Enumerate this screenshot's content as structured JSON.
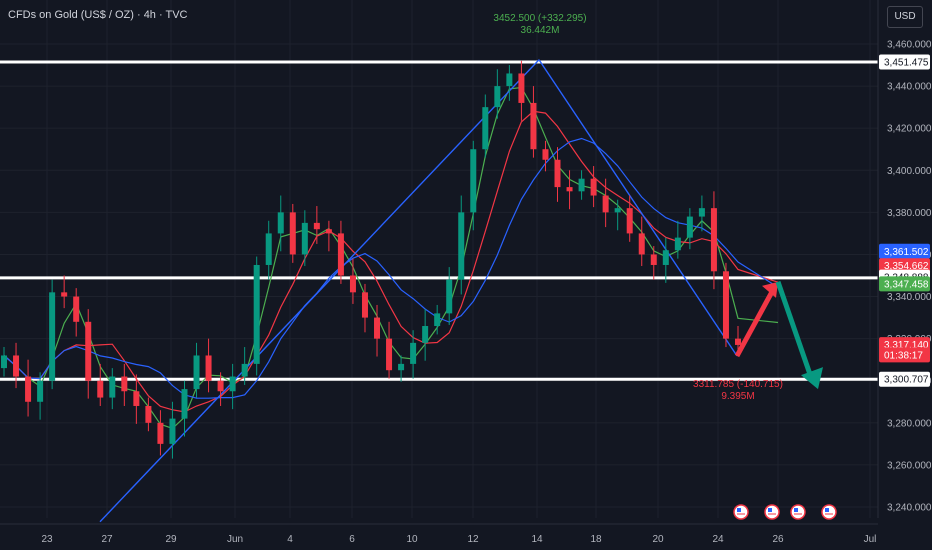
{
  "header": {
    "title": "CFDs on Gold (US$ / OZ) · 4h · TVC",
    "currency": "USD"
  },
  "price_axis": {
    "ticks": [
      "3,460.000",
      "3,440.000",
      "3,420.000",
      "3,400.000",
      "3,380.000",
      "3,360.000",
      "3,340.000",
      "3,320.000",
      "3,300.000",
      "3,280.000",
      "3,260.000",
      "3,240.000"
    ],
    "labels": [
      {
        "text": "3,451.475",
        "value": 3451.475,
        "bg": "#ffffff",
        "fg": "#131722"
      },
      {
        "text": "3,361.502",
        "value": 3361.502,
        "bg": "#2962ff",
        "fg": "#ffffff"
      },
      {
        "text": "3,354.662",
        "value": 3354.662,
        "bg": "#f23645",
        "fg": "#ffffff"
      },
      {
        "text": "3,348.888",
        "value": 3349.2,
        "bg": "#ffffff",
        "fg": "#131722"
      },
      {
        "text": "3,347.458",
        "value": 3346.0,
        "bg": "#4caf50",
        "fg": "#ffffff"
      },
      {
        "text": "3,317.140",
        "value": 3317.14,
        "bg": "#f23645",
        "fg": "#ffffff"
      },
      {
        "text": "01:38:17",
        "value": 3312.3,
        "bg": "#f23645",
        "fg": "#ffffff"
      },
      {
        "text": "3,300.707",
        "value": 3300.707,
        "bg": "#ffffff",
        "fg": "#131722"
      }
    ]
  },
  "time_axis": {
    "ticks": [
      "23",
      "27",
      "29",
      "Jun",
      "4",
      "6",
      "10",
      "12",
      "14",
      "18",
      "20",
      "24",
      "26",
      "Jul"
    ]
  },
  "annotations": {
    "high_line1": "3452.500 (+332.295)",
    "high_line2": "36.442M",
    "low_line1": "3311.785 (-140.715)",
    "low_line2": "9.395M"
  },
  "colors": {
    "up": "#089981",
    "down": "#f23645",
    "trend": "#2962ff",
    "ma_green": "#4caf50",
    "ma_red": "#f23645",
    "ma_blue": "#2962ff",
    "arrow_up": "#f23645",
    "arrow_down": "#089981"
  },
  "chart_data": {
    "type": "candlestick",
    "title": "CFDs on Gold (US$ / OZ) · 4h · TVC",
    "ylim": [
      3230,
      3470
    ],
    "horizontal_levels": [
      3451.475,
      3348.888,
      3300.707
    ],
    "series": [
      {
        "name": "price",
        "x": [
          "23",
          "23",
          "23",
          "23",
          "27",
          "27",
          "27",
          "27",
          "27",
          "29",
          "29",
          "29",
          "29",
          "29",
          "29",
          "29",
          "Jun",
          "Jun",
          "Jun",
          "Jun",
          "Jun",
          "4",
          "4",
          "4",
          "4",
          "4",
          "6",
          "6",
          "6",
          "6",
          "6",
          "6",
          "10",
          "10",
          "10",
          "10",
          "10",
          "12",
          "12",
          "12",
          "12",
          "12",
          "14",
          "14",
          "14",
          "14",
          "14",
          "14",
          "18",
          "18",
          "18",
          "18",
          "18",
          "20",
          "20",
          "20",
          "20",
          "20",
          "24",
          "24",
          "24",
          "24"
        ],
        "close": [
          3312,
          3302,
          3290,
          3300,
          3342,
          3340,
          3328,
          3300,
          3292,
          3302,
          3295,
          3288,
          3280,
          3270,
          3282,
          3296,
          3312,
          3300,
          3295,
          3302,
          3308,
          3355,
          3370,
          3380,
          3360,
          3375,
          3372,
          3370,
          3350,
          3342,
          3330,
          3320,
          3305,
          3308,
          3318,
          3326,
          3332,
          3348,
          3380,
          3410,
          3430,
          3440,
          3446,
          3432,
          3410,
          3405,
          3392,
          3390,
          3396,
          3388,
          3380,
          3382,
          3370,
          3360,
          3355,
          3362,
          3368,
          3378,
          3382,
          3352,
          3320,
          3317
        ]
      }
    ],
    "moving_averages": [
      "green",
      "red",
      "blue"
    ],
    "trendlines": [
      {
        "from": [
          "27",
          3233
        ],
        "to": [
          "14",
          3452.5
        ]
      },
      {
        "from": [
          "14",
          3452.5
        ],
        "to": [
          "24",
          3311.8
        ]
      }
    ],
    "projection": {
      "up_to": 3347,
      "down_to": 3296
    }
  }
}
